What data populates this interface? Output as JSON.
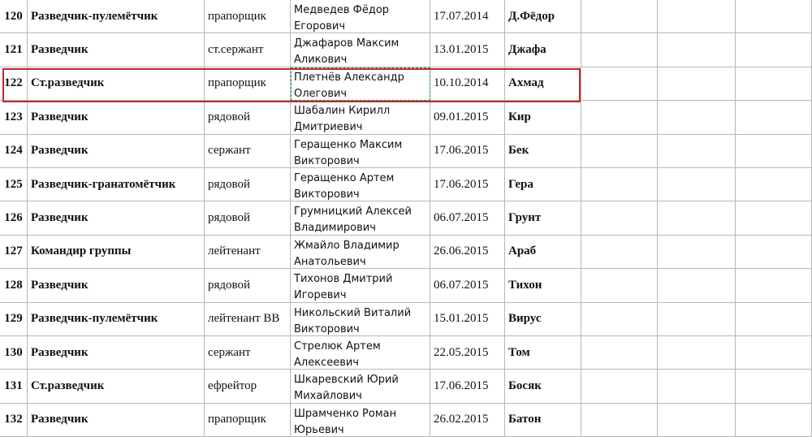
{
  "table": {
    "rows": [
      [
        "120",
        "Разведчик-пулемётчик",
        "прапорщик",
        "Медведев Фёдор Егорович",
        "17.07.2014",
        "Д.Фёдор"
      ],
      [
        "121",
        "Разведчик",
        "ст.сержант",
        "Джафаров Максим Аликович",
        "13.01.2015",
        "Джафа"
      ],
      [
        "122",
        "Ст.разведчик",
        "прапорщик",
        "Плетнёв Александр Олегович",
        "10.10.2014",
        "Ахмад"
      ],
      [
        "123",
        "Разведчик",
        "рядовой",
        "Шабалин Кирилл Дмитриевич",
        "09.01.2015",
        "Кир"
      ],
      [
        "124",
        "Разведчик",
        "сержант",
        "Геращенко Максим Викторович",
        "17.06.2015",
        "Бек"
      ],
      [
        "125",
        "Разведчик-гранатомётчик",
        "рядовой",
        "Геращенко Артем Викторович",
        "17.06.2015",
        "Гера"
      ],
      [
        "126",
        "Разведчик",
        "рядовой",
        "Грумницкий Алексей Владимирович",
        "06.07.2015",
        "Грунт"
      ],
      [
        "127",
        "Командир группы",
        "лейтенант",
        "Жмайло Владимир Анатольевич",
        "26.06.2015",
        "Араб"
      ],
      [
        "128",
        "Разведчик",
        "рядовой",
        "Тихонов Дмитрий Игоревич",
        "06.07.2015",
        "Тихон"
      ],
      [
        "129",
        "Разведчик-пулемётчик",
        "лейтенант ВВ",
        "Никольский Виталий Викторович",
        "15.01.2015",
        "Вирус"
      ],
      [
        "130",
        "Разведчик",
        "сержант",
        "Стрелюк Артем Алексеевич",
        "22.05.2015",
        "Том"
      ],
      [
        "131",
        "Ст.разведчик",
        "ефрейтор",
        "Шкаревский Юрий Михайлович",
        "17.06.2015",
        "Босяк"
      ],
      [
        "132",
        "Разведчик",
        "прапорщик",
        "Шрамченко Роман Юрьевич",
        "26.02.2015",
        "Батон"
      ]
    ]
  }
}
